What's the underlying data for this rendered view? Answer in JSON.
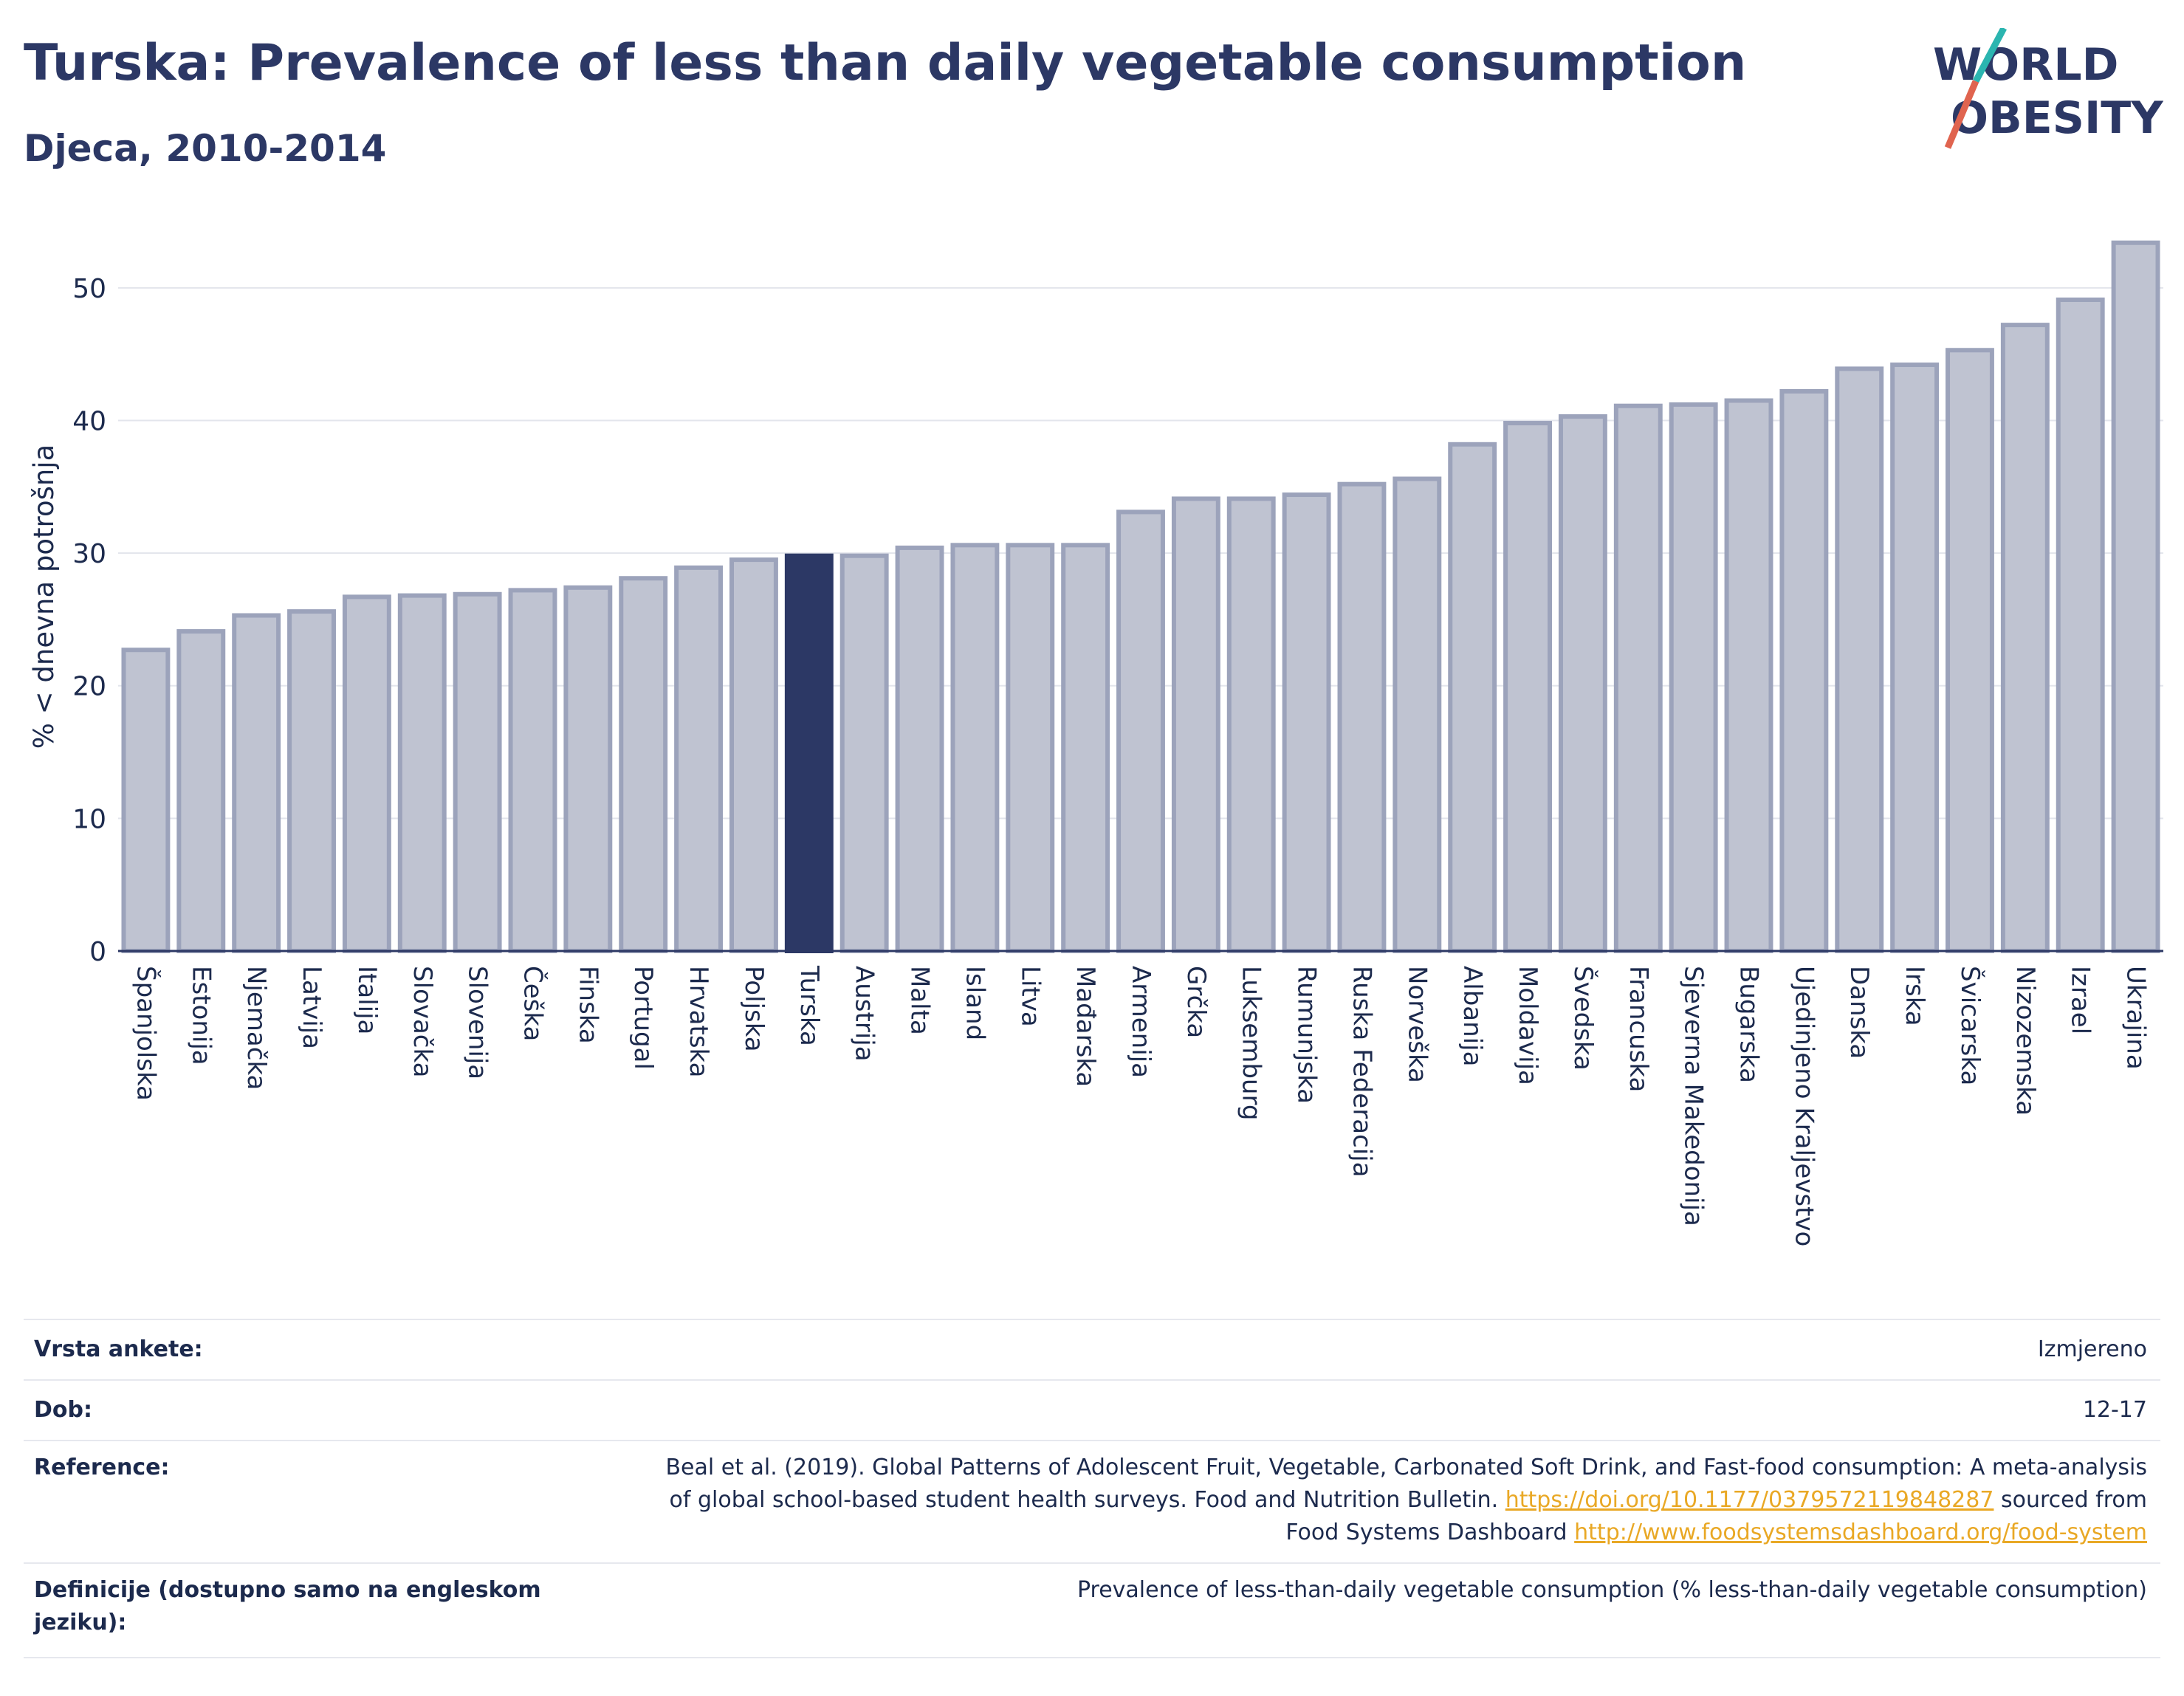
{
  "header": {
    "title": "Turska: Prevalence of less than daily vegetable consumption",
    "subtitle": "Djeca, 2010-2014"
  },
  "logo": {
    "line1": "WORLD",
    "line2": "OBESITY",
    "accent_colors": [
      "#2bb5b0",
      "#e0644f"
    ]
  },
  "chart_data": {
    "type": "bar",
    "ylabel": "% < dnevna potrošnja",
    "ylim": [
      0,
      55
    ],
    "yticks": [
      0,
      10,
      20,
      30,
      40,
      50
    ],
    "grid": true,
    "highlight": "Turska",
    "colors": {
      "bar": "#bfc3d1",
      "bar_border": "#9ca3bb",
      "highlight": "#2c3865"
    },
    "categories": [
      "Španjolska",
      "Estonija",
      "Njemačka",
      "Latvija",
      "Italija",
      "Slovačka",
      "Slovenija",
      "Češka",
      "Finska",
      "Portugal",
      "Hrvatska",
      "Poljska",
      "Turska",
      "Austrija",
      "Malta",
      "Island",
      "Litva",
      "Mađarska",
      "Armenija",
      "Grčka",
      "Luksemburg",
      "Rumunjska",
      "Ruska Federacija",
      "Norveška",
      "Albanija",
      "Moldavija",
      "Švedska",
      "Francuska",
      "Sjeverna Makedonija",
      "Bugarska",
      "Ujedinjeno Kraljevstvo",
      "Danska",
      "Irska",
      "Švicarska",
      "Nizozemska",
      "Izrael",
      "Ukrajina"
    ],
    "values": [
      22.7,
      24.1,
      25.3,
      25.6,
      26.7,
      26.8,
      26.9,
      27.2,
      27.4,
      28.1,
      28.9,
      29.5,
      29.8,
      29.8,
      30.4,
      30.6,
      30.6,
      30.6,
      33.1,
      34.1,
      34.1,
      34.4,
      35.2,
      35.6,
      38.2,
      39.8,
      40.3,
      41.1,
      41.2,
      41.5,
      42.2,
      43.9,
      44.2,
      45.3,
      47.2,
      49.1,
      53.4
    ]
  },
  "meta": {
    "survey_label": "Vrsta ankete:",
    "survey_value": "Izmjereno",
    "age_label": "Dob:",
    "age_value": "12-17",
    "ref_label": "Reference:",
    "ref_line1": "Beal et al. (2019). Global Patterns of Adolescent Fruit, Vegetable, Carbonated Soft Drink, and Fast-food consumption: A meta-analysis",
    "ref_line2_text": "of global school-based student health surveys. Food and Nutrition Bulletin.",
    "ref_doi": "https://doi.org/10.1177/0379572119848287",
    "ref_line2_tail": "sourced from",
    "ref_line3_text": "Food Systems Dashboard",
    "ref_url": "http://www.foodsystemsdashboard.org/food-system",
    "def_label_1": "Definicije (dostupno samo na engleskom",
    "def_label_2": "jeziku):",
    "def_value": "Prevalence of less-than-daily vegetable consumption (% less-than-daily vegetable consumption)"
  }
}
